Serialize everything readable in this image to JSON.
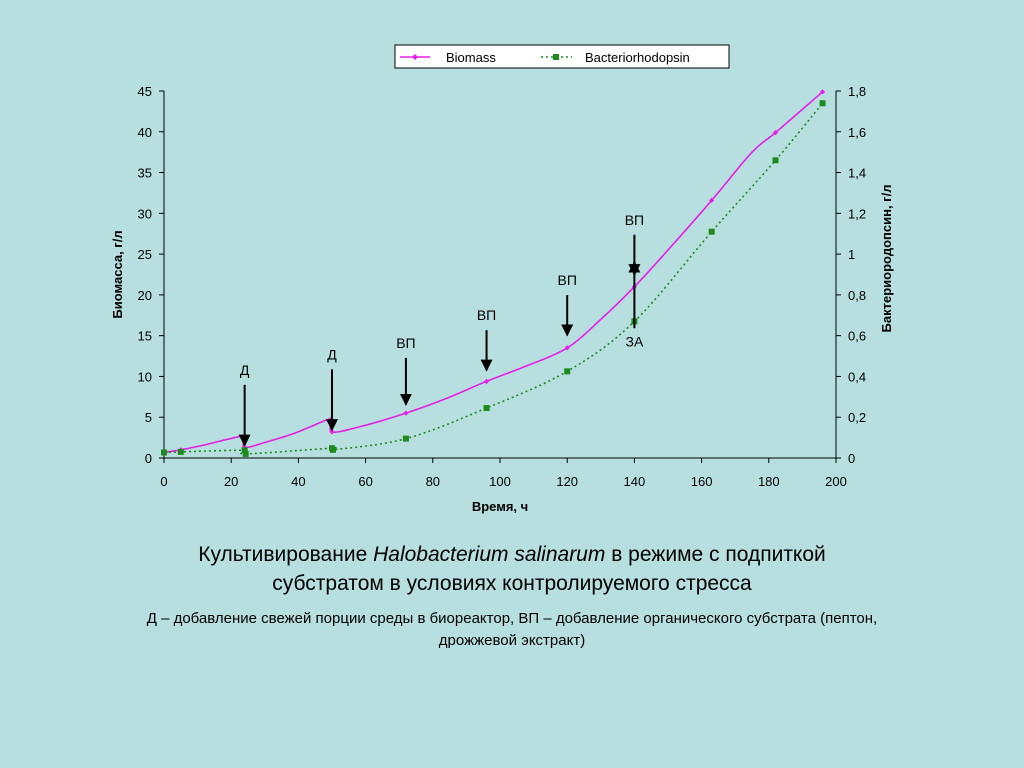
{
  "chart_data": {
    "type": "line",
    "legend_position": "top",
    "grid": false,
    "xlabel": "Время, ч",
    "ylabel": "Биомасса, г/л",
    "y2label": "Бактериородопсин, г/л",
    "xlim": [
      0,
      200
    ],
    "ylim": [
      0,
      45
    ],
    "y2lim": [
      0,
      1.8
    ],
    "x_ticks": [
      "0",
      "20",
      "40",
      "60",
      "80",
      "100",
      "120",
      "140",
      "160",
      "180",
      "200"
    ],
    "y_ticks": [
      "0",
      "5",
      "10",
      "15",
      "20",
      "25",
      "30",
      "35",
      "40",
      "45"
    ],
    "y2_ticks": [
      "0",
      "0,2",
      "0,4",
      "0,6",
      "0,8",
      "1",
      "1,2",
      "1,4",
      "1,6",
      "1,8"
    ],
    "series": [
      {
        "name": "Biomass",
        "axis": "left",
        "color": "#e61fe6",
        "marker": "diamond",
        "line": "solid",
        "points": [
          [
            0,
            0.7
          ],
          [
            5,
            1.0
          ],
          [
            12,
            1.6
          ],
          [
            19,
            2.3
          ],
          [
            23.5,
            2.6
          ],
          [
            24,
            1.3
          ],
          [
            30,
            1.9
          ],
          [
            38,
            2.9
          ],
          [
            44,
            3.9
          ],
          [
            49.5,
            4.7
          ],
          [
            50,
            3.2
          ],
          [
            58,
            3.8
          ],
          [
            72,
            5.5
          ],
          [
            84,
            7.3
          ],
          [
            96,
            9.4
          ],
          [
            108,
            11.3
          ],
          [
            120,
            13.5
          ],
          [
            130,
            17.0
          ],
          [
            140,
            21.0
          ],
          [
            150,
            25.5
          ],
          [
            163,
            31.6
          ],
          [
            175,
            37.5
          ],
          [
            182,
            39.9
          ],
          [
            196,
            44.9
          ]
        ],
        "markers_x": [
          0,
          5,
          23.5,
          24,
          49.5,
          50,
          72,
          96,
          120,
          140,
          163,
          182,
          196
        ]
      },
      {
        "name": "Bacteriorhodopsin",
        "axis": "right",
        "color": "#1e8a1e",
        "marker": "square",
        "line": "dotted",
        "points": [
          [
            0,
            0.027
          ],
          [
            5,
            0.03
          ],
          [
            24,
            0.038
          ],
          [
            24.3,
            0.02
          ],
          [
            50,
            0.048
          ],
          [
            50.3,
            0.04
          ],
          [
            72,
            0.095
          ],
          [
            96,
            0.245
          ],
          [
            120,
            0.425
          ],
          [
            140,
            0.67
          ],
          [
            163,
            1.11
          ],
          [
            182,
            1.46
          ],
          [
            196,
            1.74
          ]
        ]
      }
    ],
    "annotations": [
      {
        "label": "Д",
        "x": 24,
        "direction": "down",
        "target_y": 1.3,
        "text_y": 10.2
      },
      {
        "label": "Д",
        "x": 50,
        "direction": "down",
        "target_y": 3.2,
        "text_y": 12.1
      },
      {
        "label": "ВП",
        "x": 72,
        "direction": "down",
        "target_y": 6.3,
        "text_y": 13.5
      },
      {
        "label": "ВП",
        "x": 96,
        "direction": "down",
        "target_y": 10.5,
        "text_y": 16.9
      },
      {
        "label": "ВП",
        "x": 120,
        "direction": "down",
        "target_y": 14.8,
        "text_y": 21.2
      },
      {
        "label": "ВП",
        "x": 140,
        "direction": "down",
        "target_y": 22.2,
        "text_y": 28.6
      },
      {
        "label": "ЗА",
        "x": 140,
        "direction": "up",
        "target_y": 24.3,
        "text_y": 13.7
      }
    ]
  },
  "caption": {
    "title_before": "Культивирование ",
    "title_italic": "Halobacterium salinarum",
    "title_after": " в режиме с подпиткой",
    "title_line2": "субстратом в условиях контролируемого стресса",
    "note_line1": "Д – добавление свежей порции среды в биореактор, ВП – добавление органического субстрата (пептон,",
    "note_line2": "дрожжевой экстракт)"
  }
}
